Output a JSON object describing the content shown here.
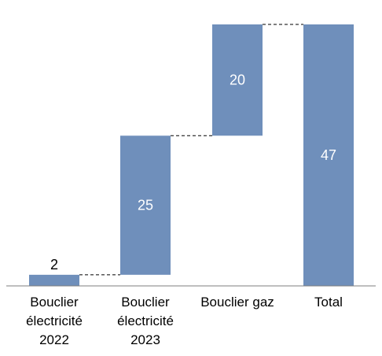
{
  "chart_data": {
    "type": "waterfall",
    "categories": [
      [
        "Bouclier",
        "électricité",
        "2022"
      ],
      [
        "Bouclier",
        "électricité",
        "2023"
      ],
      [
        "Bouclier gaz"
      ],
      [
        "Total"
      ]
    ],
    "values": [
      2,
      25,
      20,
      47
    ],
    "is_total": [
      false,
      false,
      false,
      true
    ],
    "data_labels": [
      "2",
      "25",
      "20",
      "47"
    ],
    "ylim": [
      0,
      47
    ],
    "grid": false,
    "bar_color": "#6f8fbb",
    "connector_style": "dashed"
  }
}
